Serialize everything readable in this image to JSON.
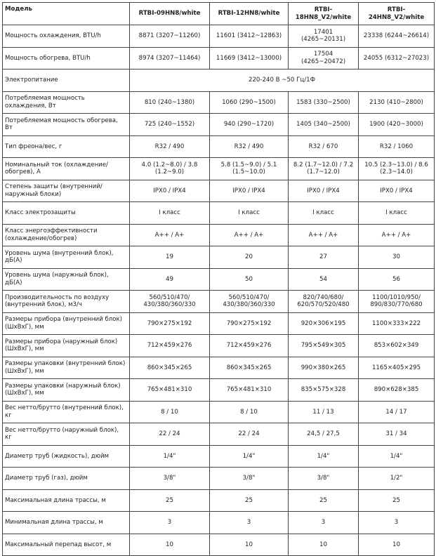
{
  "table": {
    "header": [
      "Модель",
      "RTBI-09HN8/white",
      "RTBI-12HN8/white",
      "RTBI-18HN8_V2/white",
      "RTBI-24HN8_V2/white"
    ],
    "rows": [
      [
        "Мощность охлаждения, BTU/h",
        "8871 (3207~11260)",
        "11601 (3412~12863)",
        "17401 (4265~20131)",
        "23338 (6244~26614)"
      ],
      [
        "Мощность обогрева, BTU/h",
        "8974 (3207~11464)",
        "11669 (3412~13000)",
        "17504 (4265~20472)",
        "24055 (6312~27023)"
      ],
      [
        "Электропитание",
        "220-240 В ~50 Гц/1Ф"
      ],
      [
        "Потребляемая мощность охлаждения, Вт",
        "810 (240~1380)",
        "1060 (290~1500)",
        "1583 (330~2500)",
        "2130 (410~2800)"
      ],
      [
        "Потребляемая мощность обогрева, Вт",
        "725 (240~1552)",
        "940 (290~1720)",
        "1405 (340~2500)",
        "1900 (420~3000)"
      ],
      [
        "Тип фреона/вес, г",
        "R32 / 490",
        "R32 / 490",
        "R32 / 670",
        "R32 / 1060"
      ],
      [
        "Номинальный ток (охлаждение/обогрев), А",
        "4.0 (1.2~8.0) / 3.8 (1.2~9.0)",
        "5.8 (1.5~9.0) / 5.1 (1.5~10.0)",
        "8.2 (1.7~12.0) / 7.2 (1.7~12.0)",
        "10.5 (2.3~13.0) / 8.6 (2.3~14.0)"
      ],
      [
        "Степень защиты (внутренний/наружный блоки)",
        "IPX0 / IPX4",
        "IPX0 / IPX4",
        "IPX0 / IPX4",
        "IPX0 / IPX4"
      ],
      [
        "Класс электрозащиты",
        "I класс",
        "I класс",
        "I класс",
        "I класс"
      ],
      [
        "Класс энергоэффективности (охлаждение/обогрев)",
        "A++ / A+",
        "A++ / A+",
        "A++ / A+",
        "A++ / A+"
      ],
      [
        "Уровень шума (внутренний блок), дБ(А)",
        "19",
        "20",
        "27",
        "30"
      ],
      [
        "Уровень шума (наружный блок), дБ(А)",
        "49",
        "50",
        "54",
        "56"
      ],
      [
        "Производительность по воздуху (внутренний блок), м3/ч",
        "560/510/470/ 430/380/360/330",
        "560/510/470/ 430/380/360/330",
        "820/740/680/ 620/570/520/480",
        "1100/1010/950/ 890/830/770/680"
      ],
      [
        "Размеры прибора (внутренний блок) (ШхВхГ), мм",
        "790×275×192",
        "790×275×192",
        "920×306×195",
        "1100×333×222"
      ],
      [
        "Размеры прибора (наружный блок) (ШхВхГ), мм",
        "712×459×276",
        "712×459×276",
        "795×549×305",
        "853×602×349"
      ],
      [
        "Размеры упаковки (внутренний блок) (ШхВхГ), мм",
        "860×345×265",
        "860×345×265",
        "990×380×265",
        "1165×405×295"
      ],
      [
        "Размеры упаковки (наружный блок) (ШхВхГ), мм",
        "765×481×310",
        "765×481×310",
        "835×575×328",
        "890×628×385"
      ],
      [
        "Вес нетто/брутто (внутренний блок), кг",
        "8 / 10",
        "8 / 10",
        "11 / 13",
        "14 / 17"
      ],
      [
        "Вес нетто/брутто (наружный блок), кг",
        "22 / 24",
        "22 / 24",
        "24,5 / 27,5",
        "31 / 34"
      ],
      [
        "Диаметр труб (жидкость), дюйм",
        "1/4\"",
        "1/4\"",
        "1/4\"",
        "1/4\""
      ],
      [
        "Диаметр труб (газ), дюйм",
        "3/8\"",
        "3/8\"",
        "3/8\"",
        "1/2\""
      ],
      [
        "Максимальная длина трассы, м",
        "25",
        "25",
        "25",
        "25"
      ],
      [
        "Минимальная длина трассы, м",
        "3",
        "3",
        "3",
        "3"
      ],
      [
        "Максимальный перепад высот, м",
        "10",
        "10",
        "10",
        "10"
      ]
    ]
  }
}
